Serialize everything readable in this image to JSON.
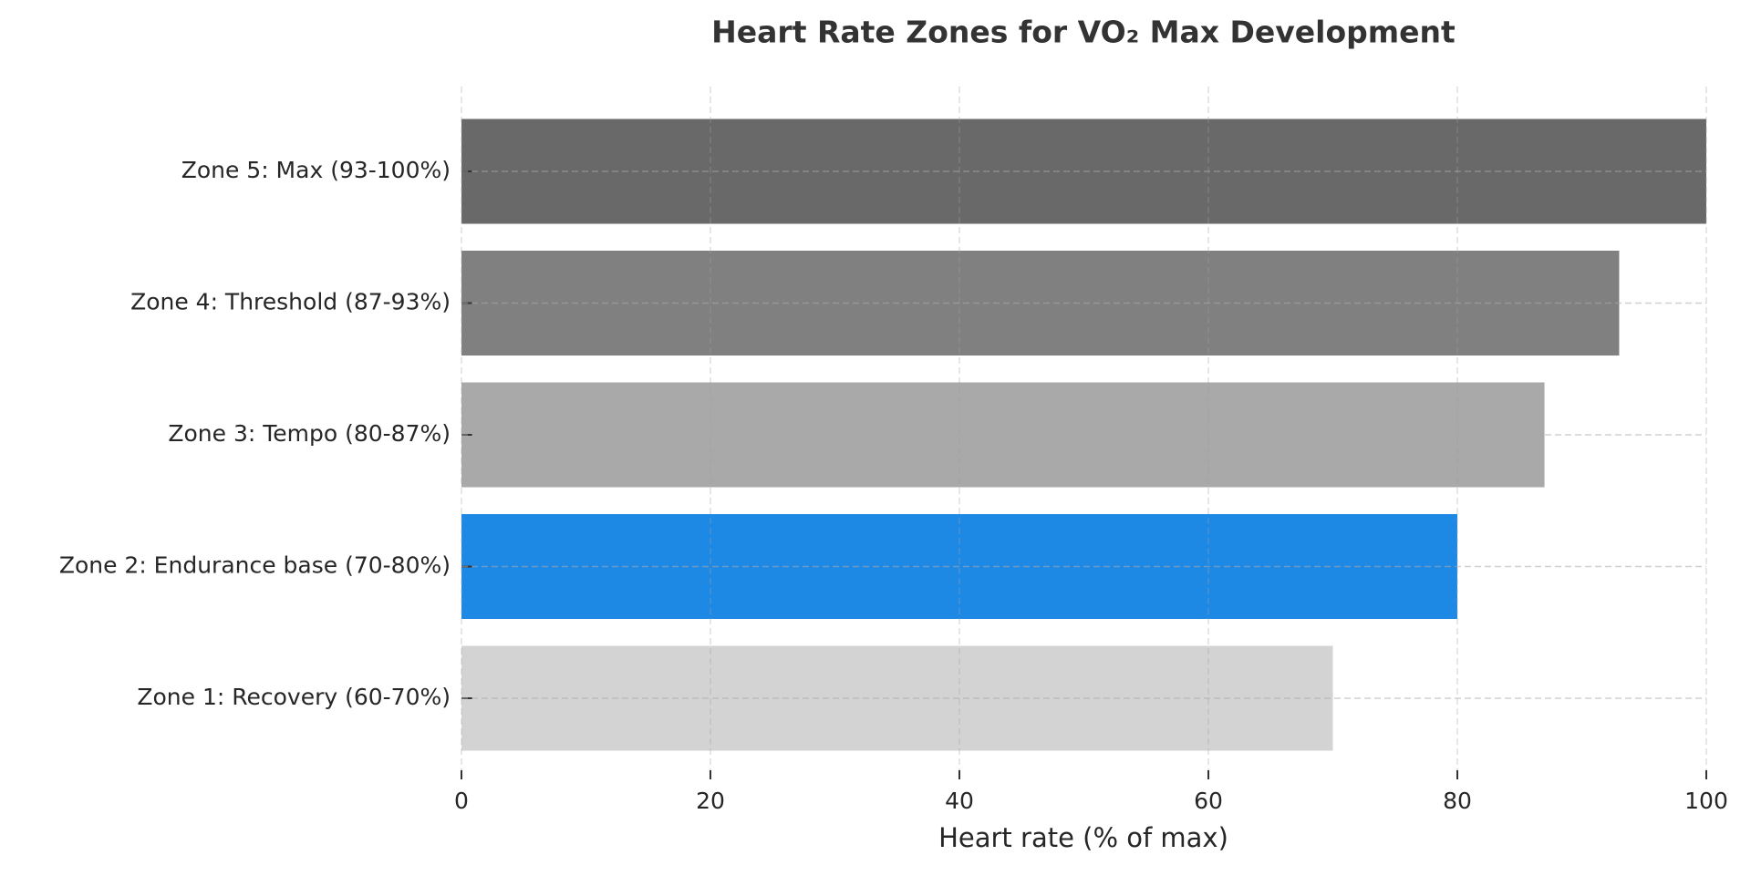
{
  "chart_data": {
    "type": "bar",
    "orientation": "horizontal",
    "title": "Heart Rate Zones for VO₂ Max Development",
    "x_label": "Heart rate (% of max)",
    "categories": [
      "Zone 1: Recovery (60-70%)",
      "Zone 2: Endurance base (70-80%)",
      "Zone 3: Tempo (80-87%)",
      "Zone 4: Threshold (87-93%)",
      "Zone 5: Max (93-100%)"
    ],
    "values": [
      70,
      80,
      87,
      93,
      100
    ],
    "colors": [
      "#d3d3d3",
      "#1e88e5",
      "#a9a9a9",
      "#808080",
      "#696969"
    ],
    "xlim": [
      0,
      100
    ],
    "xticks": [
      0,
      20,
      40,
      60,
      80,
      100
    ],
    "grid": true
  }
}
